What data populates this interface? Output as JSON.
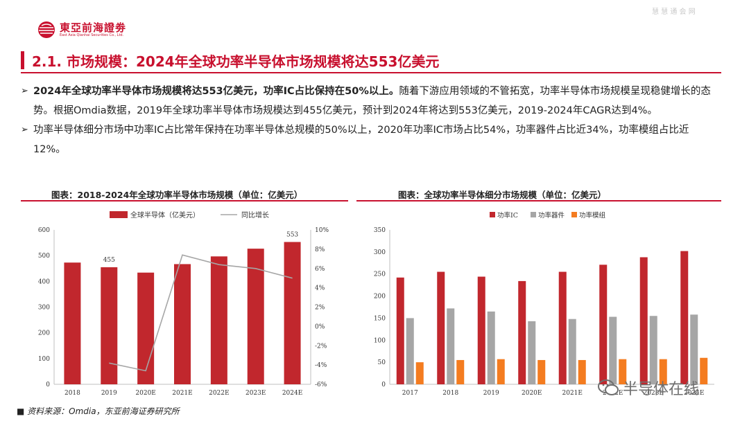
{
  "header": {
    "logo_cn": "東亞前海證劵",
    "logo_en": "East Asia Qianhai Securities Co., Ltd.",
    "watermark": "慧 慧 通 会 网"
  },
  "title": "2.1. 市场规模：2024年全球功率半导体市场规模将达553亿美元",
  "bullets": [
    {
      "bold": "2024年全球功率半导体市场规模将达553亿美元，功率IC占比保持在50%以上。",
      "text": "随着下游应用领域的不管拓宽，功率半导体市场规模呈现稳健增长的态势。根据Omdia数据，2019年全球功率半导体市场规模达到455亿美元，预计到2024年将达到553亿美元，2019-2024年CAGR达到4%。"
    },
    {
      "bold": "",
      "text": "功率半导体细分市场中功率IC占比常年保持在功率半导体总规模的50%以上，2020年功率IC市场占比54%，功率器件占比近34%，功率模组占比近12%。"
    }
  ],
  "chart_left_title": "图表：2018-2024年全球功率半导体市场规模（单位：亿美元）",
  "chart_right_title": "图表：全球功率半导体细分市场规模（单位：亿美元）",
  "source": "资料来源：Omdia，东亚前海证券研究所",
  "watermark_bottom": "半导体在线",
  "colors": {
    "accent": "#c8102e",
    "bar_red": "#c1272d",
    "bar_gray": "#a6a6a6",
    "bar_orange": "#f47c20",
    "line_gray": "#a6a6a6"
  },
  "chart_data": [
    {
      "type": "bar",
      "categories": [
        "2018",
        "2019",
        "2020E",
        "2021E",
        "2022E",
        "2023E",
        "2024E"
      ],
      "series": [
        {
          "name": "全球半导体（亿美元）",
          "type": "bar",
          "axis": "left",
          "values": [
            473,
            455,
            434,
            467,
            497,
            527,
            553
          ]
        },
        {
          "name": "同比增长",
          "type": "line",
          "axis": "right",
          "values": [
            null,
            -3.8,
            -4.6,
            7.4,
            6.4,
            6.0,
            5.0
          ]
        }
      ],
      "data_labels": [
        {
          "index": 1,
          "text": "455"
        },
        {
          "index": 6,
          "text": "553"
        }
      ],
      "ylim": [
        0,
        600
      ],
      "yticks": [
        "0",
        "100",
        "200",
        "300",
        "400",
        "500",
        "600"
      ],
      "y2lim": [
        -6,
        10
      ],
      "y2ticks": [
        "-6%",
        "-4%",
        "-2%",
        "0%",
        "2%",
        "4%",
        "6%",
        "8%",
        "10%"
      ],
      "legend_placement": "top-center",
      "grid": false
    },
    {
      "type": "bar",
      "categories": [
        "2017",
        "2018",
        "2019",
        "2020E",
        "2021E",
        "2022E",
        "2023E",
        "2024E"
      ],
      "series": [
        {
          "name": "功率IC",
          "values": [
            242,
            255,
            244,
            234,
            255,
            271,
            288,
            302
          ]
        },
        {
          "name": "功率器件",
          "values": [
            150,
            172,
            165,
            143,
            148,
            153,
            155,
            158
          ]
        },
        {
          "name": "功率模组",
          "values": [
            50,
            55,
            57,
            55,
            55,
            57,
            57,
            60
          ]
        }
      ],
      "ylim": [
        0,
        350
      ],
      "yticks": [
        "0",
        "50",
        "100",
        "150",
        "200",
        "250",
        "300",
        "350"
      ],
      "legend_placement": "top-left",
      "grid": false
    }
  ]
}
